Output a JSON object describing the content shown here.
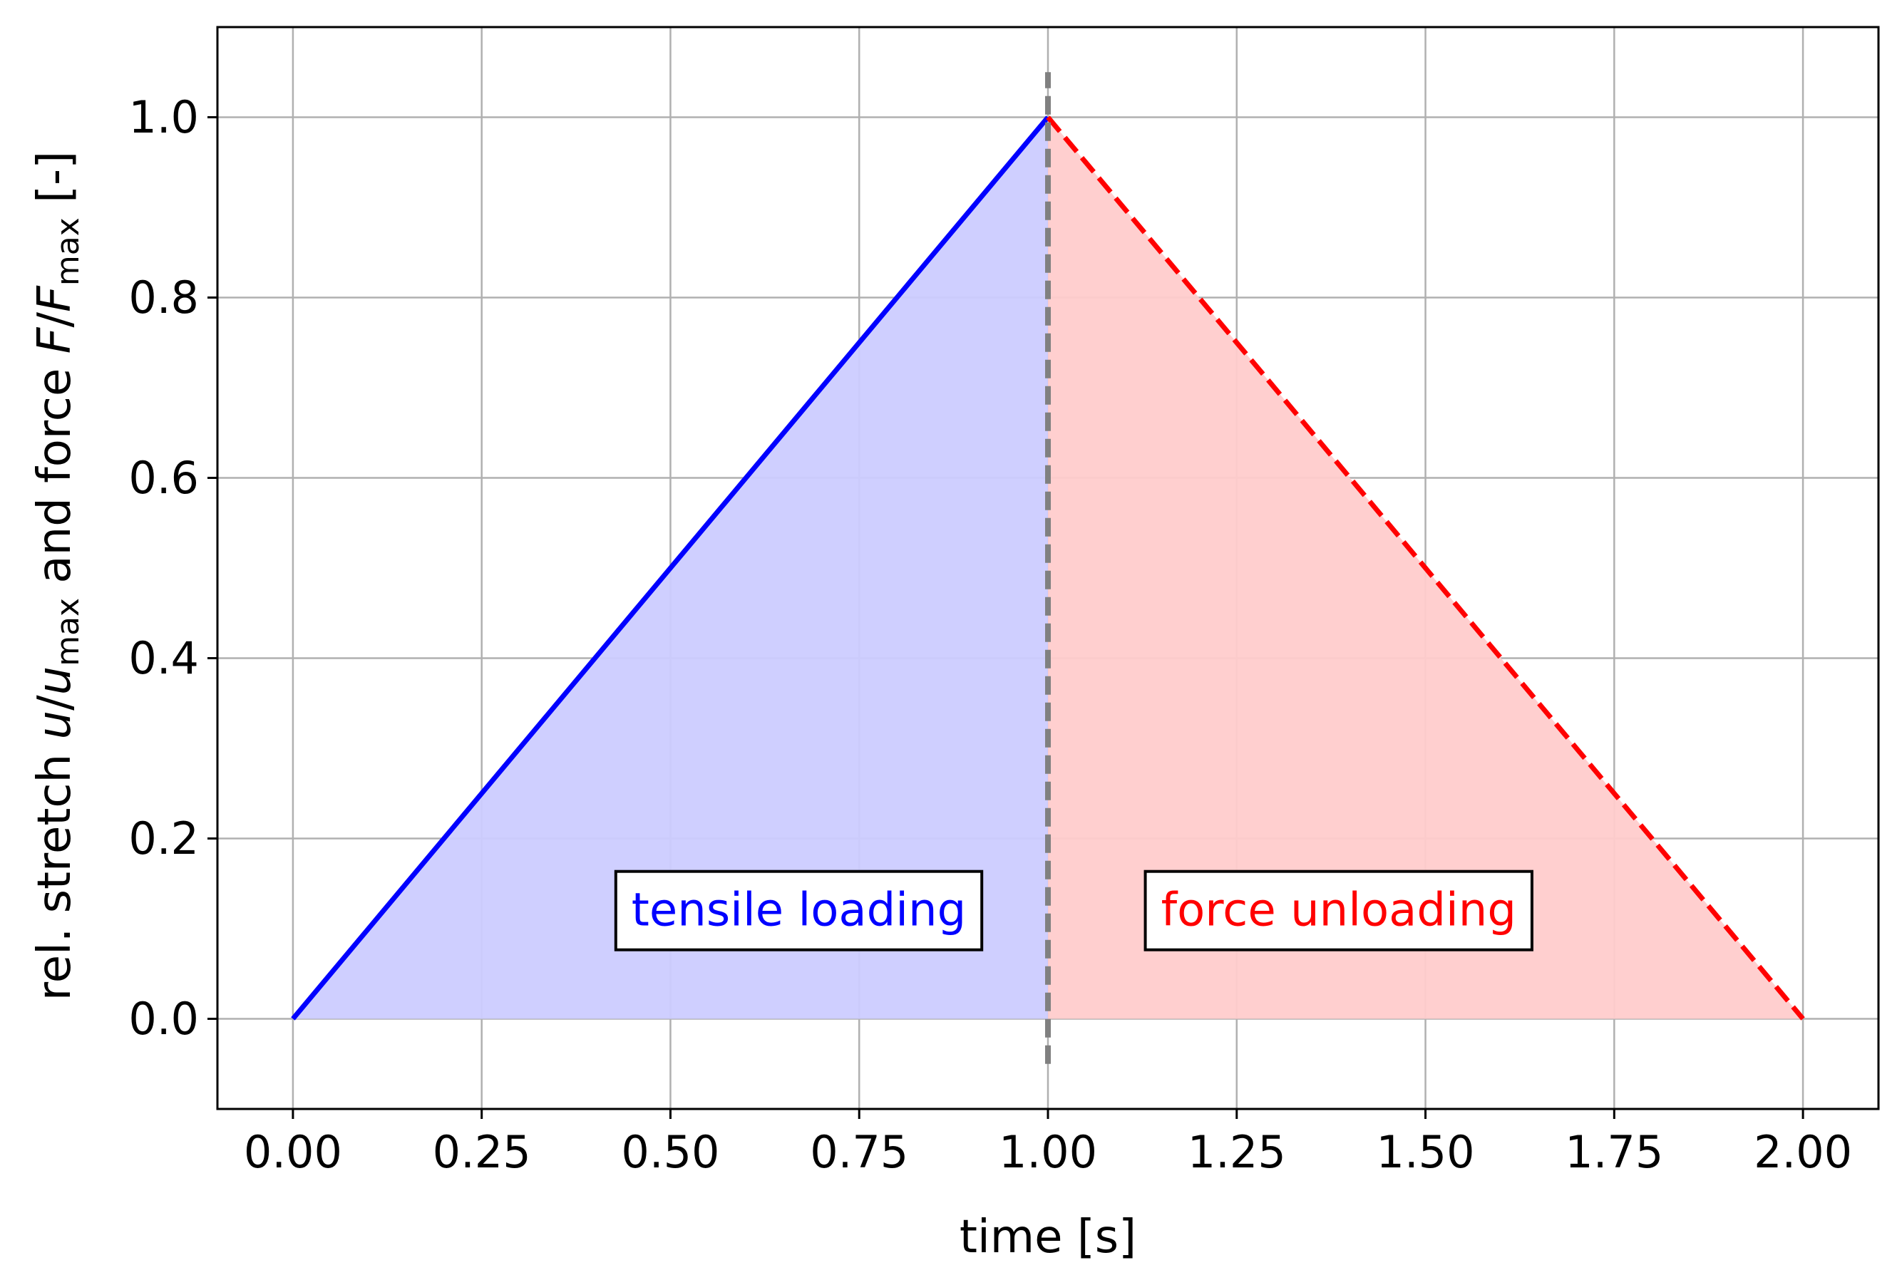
{
  "chart_data": {
    "type": "line",
    "title": "",
    "xlabel": "time [s]",
    "ylabel": {
      "prefix": "rel. stretch ",
      "u_var": "u",
      "slash1": "/",
      "u_max_var": "u",
      "u_sub": "max",
      "middle": " and force ",
      "f_var": "F",
      "slash2": "/",
      "f_max_var": "F",
      "f_sub": "max",
      "suffix": " [-]"
    },
    "xlim": [
      -0.1,
      2.1
    ],
    "ylim": [
      -0.1,
      1.1
    ],
    "xticks": [
      0.0,
      0.25,
      0.5,
      0.75,
      1.0,
      1.25,
      1.5,
      1.75,
      2.0
    ],
    "xtick_labels": [
      "0.00",
      "0.25",
      "0.50",
      "0.75",
      "1.00",
      "1.25",
      "1.50",
      "1.75",
      "2.00"
    ],
    "yticks": [
      0.0,
      0.2,
      0.4,
      0.6,
      0.8,
      1.0
    ],
    "ytick_labels": [
      "0.0",
      "0.2",
      "0.4",
      "0.6",
      "0.8",
      "1.0"
    ],
    "grid": true,
    "series": [
      {
        "x": [
          0.0,
          1.0
        ],
        "y": [
          0.0,
          1.0
        ],
        "color": "#0000ff",
        "linestyle": "solid",
        "fill": "#ccccff"
      },
      {
        "x": [
          1.0,
          2.0
        ],
        "y": [
          1.0,
          0.0
        ],
        "color": "#ff0000",
        "linestyle": "dashed",
        "fill": "#ffcccc"
      }
    ],
    "vline": {
      "x": 1.0,
      "y_from": -0.05,
      "y_to": 1.05,
      "color": "#808080",
      "linestyle": "dashed"
    },
    "annotations": [
      {
        "text": "tensile loading",
        "x": 0.67,
        "y": 0.12,
        "color": "#0000ff"
      },
      {
        "text": "force unloading",
        "x": 1.385,
        "y": 0.12,
        "color": "#ff0000"
      }
    ]
  }
}
